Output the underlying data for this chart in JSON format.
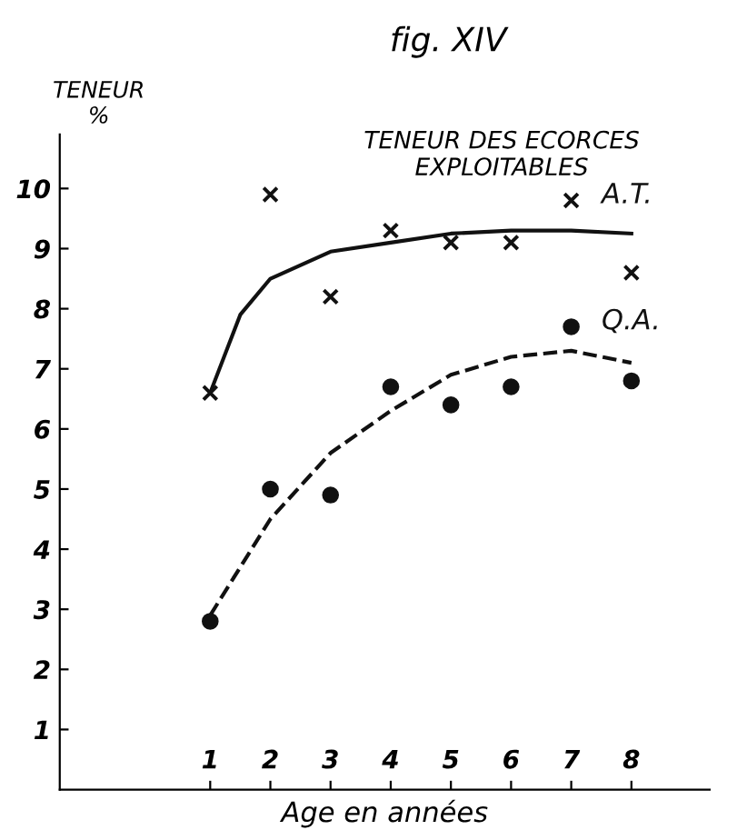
{
  "chart_data": {
    "type": "scatter",
    "title": "fig. XIV",
    "subtitle": "TENEUR DES ECORCES\nEXPLOITABLES",
    "ylabel": "TENEUR\n%",
    "xlabel": "Age en années",
    "xlim": [
      -1.5,
      9.3
    ],
    "xticks": [
      1,
      2,
      3,
      4,
      5,
      6,
      7,
      8
    ],
    "ylim": [
      0,
      10.9
    ],
    "yticks": [
      1,
      2,
      3,
      4,
      5,
      6,
      7,
      8,
      9,
      10
    ],
    "grid": false,
    "series": [
      {
        "name": "A.T.",
        "marker": "cross",
        "color": "#111111",
        "x": [
          1,
          2,
          3,
          4,
          5,
          6,
          7,
          8
        ],
        "values": [
          6.6,
          9.9,
          8.2,
          9.3,
          9.1,
          9.1,
          9.8,
          8.6
        ]
      },
      {
        "type": "line",
        "line_style": "solid",
        "color": "#111111",
        "x": [
          1,
          1.5,
          2,
          3,
          4,
          5,
          6,
          7,
          8
        ],
        "values": [
          6.6,
          7.9,
          8.5,
          8.95,
          9.1,
          9.25,
          9.3,
          9.3,
          9.25
        ]
      },
      {
        "name": "Q.A.",
        "marker": "circle",
        "color": "#111111",
        "x": [
          1,
          2,
          3,
          4,
          5,
          6,
          7,
          8
        ],
        "values": [
          2.8,
          5.0,
          4.9,
          6.7,
          6.4,
          6.7,
          7.7,
          6.8
        ]
      },
      {
        "type": "line",
        "line_style": "dashed",
        "color": "#111111",
        "x": [
          1,
          2,
          3,
          4,
          5,
          6,
          7,
          8
        ],
        "values": [
          2.9,
          4.5,
          5.6,
          6.3,
          6.9,
          7.2,
          7.3,
          7.1
        ]
      }
    ]
  }
}
